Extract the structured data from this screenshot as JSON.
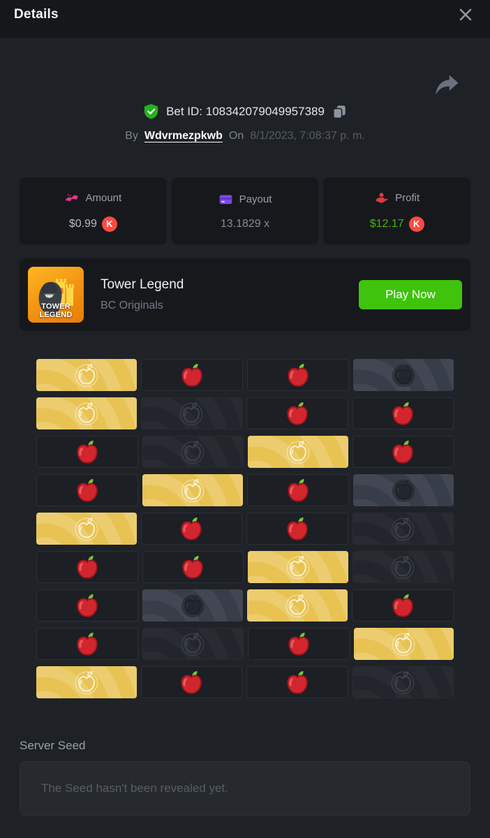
{
  "header": {
    "title": "Details"
  },
  "share": {
    "icon": "share-arrow"
  },
  "bet": {
    "id_text": "Bet ID: 108342079049957389",
    "by_label": "By",
    "username": "Wdvrmezpkwb",
    "on_label": "On",
    "datetime": "8/1/2023, 7:08:37 p. m."
  },
  "stats": {
    "0": {
      "label": "Amount",
      "value": "$0.99",
      "coin": "K",
      "icon": "gold-bars-icon",
      "icon_color": "#e3368b"
    },
    "1": {
      "label": "Payout",
      "value": "13.1829 x",
      "icon": "credit-card-icon",
      "icon_color": "#7c4be9"
    },
    "2": {
      "label": "Profit",
      "value": "$12.17",
      "coin": "K",
      "icon": "hand-coin-icon",
      "icon_color": "#dd3a44",
      "value_color": "#47b30a"
    }
  },
  "game": {
    "title": "Tower Legend",
    "provider": "BC Originals",
    "play_button": "Play Now",
    "thumb_text": "TOWER\nLEGEND"
  },
  "grid": {
    "legend": {
      "gold": "picked-golden-apple",
      "red": "red-apple",
      "dark": "unrevealed-apple",
      "light": "revealed-dark-apple"
    },
    "rows": [
      [
        "gold",
        "red",
        "red",
        "light"
      ],
      [
        "gold",
        "dark",
        "red",
        "red"
      ],
      [
        "red",
        "dark",
        "gold",
        "red"
      ],
      [
        "red",
        "gold",
        "red",
        "light"
      ],
      [
        "gold",
        "red",
        "red",
        "dark"
      ],
      [
        "red",
        "red",
        "gold",
        "dark"
      ],
      [
        "red",
        "light",
        "gold",
        "red"
      ],
      [
        "red",
        "dark",
        "red",
        "gold"
      ],
      [
        "gold",
        "red",
        "red",
        "dark"
      ]
    ]
  },
  "seed": {
    "label": "Server Seed",
    "placeholder": "The Seed hasn't been revealed yet."
  },
  "colors": {
    "gold_tile": "#e8c353",
    "red_apple": "#d2262e",
    "profit_green": "#47b30a",
    "play_green": "#3fc30d",
    "coin_red": "#fb4b42"
  }
}
